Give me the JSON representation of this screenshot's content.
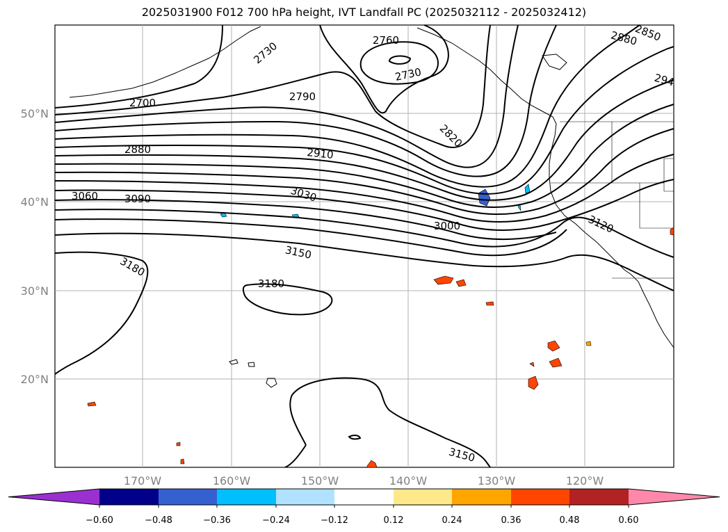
{
  "title": "2025031900 F012 700 hPa height, IVT Landfall PC (2025032112 - 2025032412)",
  "lat_labels": [
    "50°N",
    "40°N",
    "30°N",
    "20°N"
  ],
  "lon_labels": [
    "170°W",
    "160°W",
    "150°W",
    "140°W",
    "130°W",
    "120°W"
  ],
  "contour_labels": [
    "2760",
    "2730",
    "2730",
    "2700",
    "2790",
    "2820",
    "2880",
    "2910",
    "3060",
    "3090",
    "3030",
    "3000",
    "3120",
    "3150",
    "3180",
    "3180",
    "3150",
    "2880",
    "2850",
    "294"
  ],
  "colorbar": {
    "colors": [
      "#9b30d0",
      "#00008b",
      "#3560d0",
      "#00bfff",
      "#b0e2ff",
      "#ffffff",
      "#fde98a",
      "#ffa500",
      "#ff4500",
      "#b22222",
      "#ff88aa"
    ],
    "ticks": [
      "−0.60",
      "−0.48",
      "−0.36",
      "−0.24",
      "−0.12",
      "0.12",
      "0.24",
      "0.36",
      "0.48",
      "0.60"
    ]
  },
  "map": {
    "lon_range": [
      -180,
      -110
    ],
    "lat_range": [
      10,
      60
    ],
    "variable": "700 hPa height",
    "shading": "IVT Landfall PC"
  }
}
